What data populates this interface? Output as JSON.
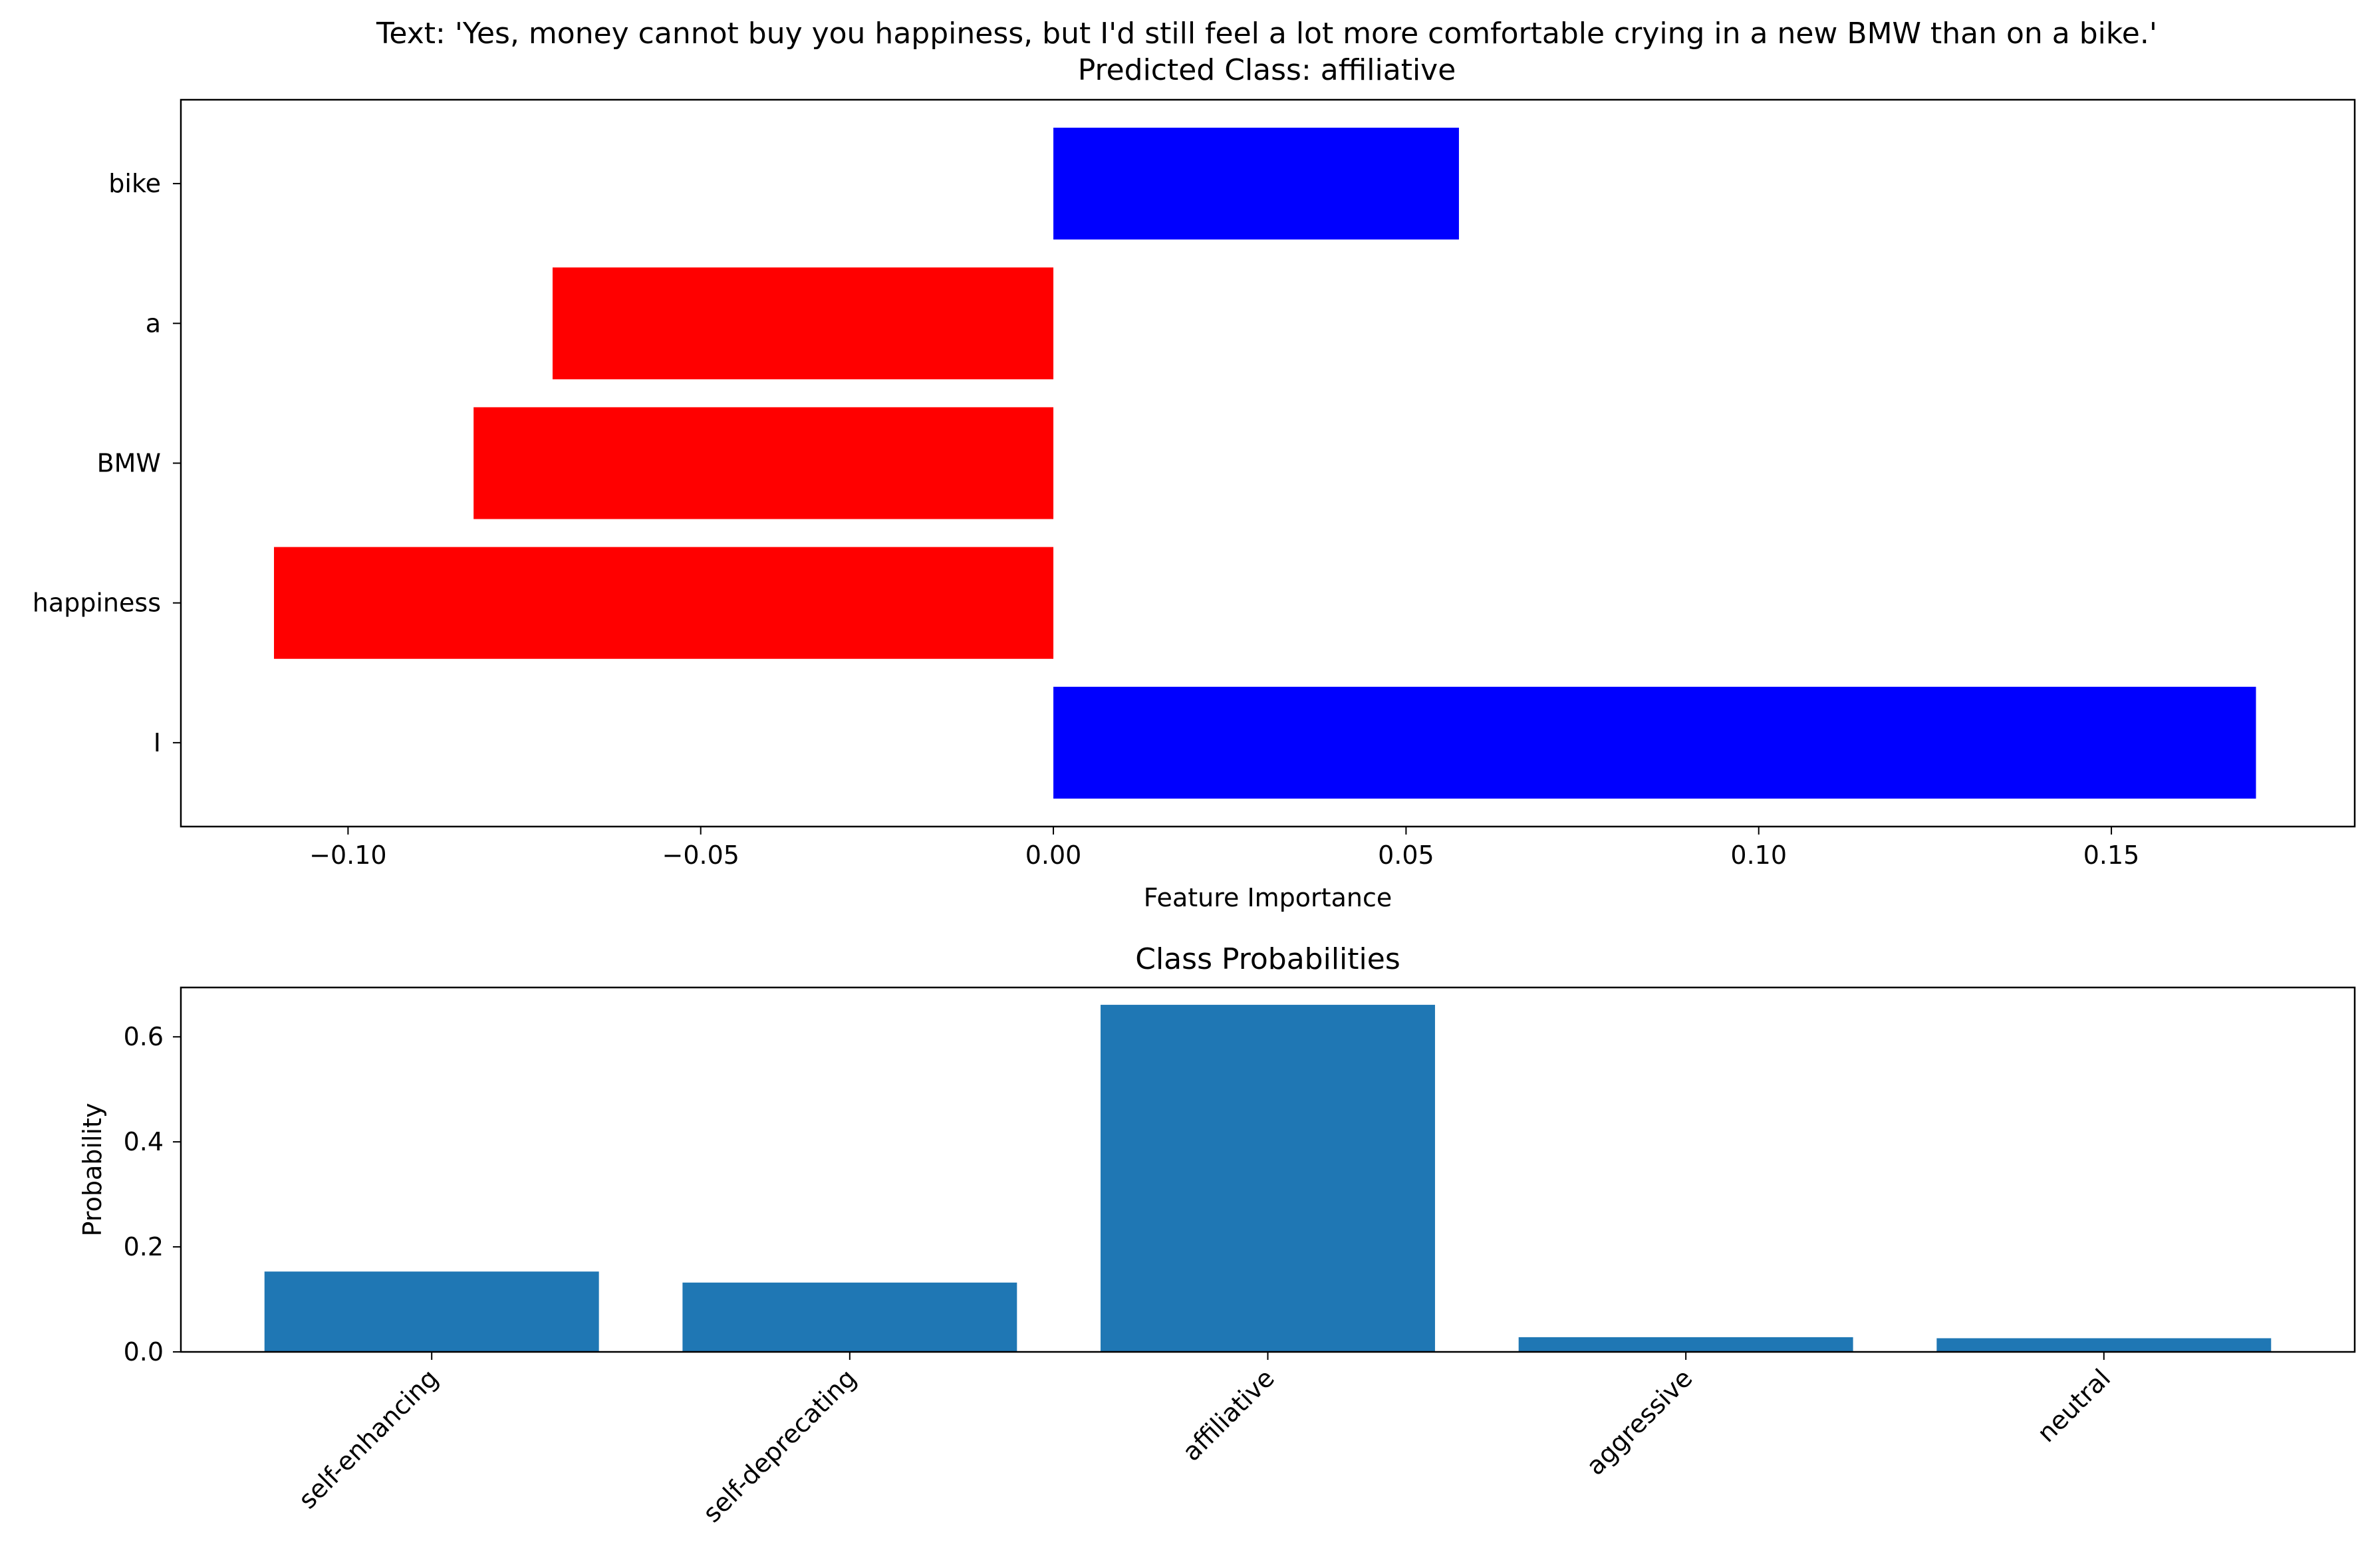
{
  "title_line1": "Text: 'Yes, money cannot buy you happiness, but I'd still feel a lot more comfortable crying in a new BMW than on a bike.'",
  "title_line2": "Predicted Class: affiliative",
  "chart_data": [
    {
      "type": "bar",
      "orientation": "horizontal",
      "title": "",
      "xlabel": "Feature Importance",
      "ylabel": "",
      "categories": [
        "I",
        "happiness",
        "BMW",
        "a",
        "bike"
      ],
      "values": [
        0.1705,
        -0.1105,
        -0.0822,
        -0.071,
        0.0575
      ],
      "colors": [
        "#0000ff",
        "#ff0000",
        "#ff0000",
        "#ff0000",
        "#0000ff"
      ],
      "positive_color": "#0000ff",
      "negative_color": "#ff0000",
      "xlim": [
        -0.1237,
        0.1845
      ],
      "xticks": [
        -0.1,
        -0.05,
        0.0,
        0.05,
        0.1,
        0.15
      ],
      "xtick_labels": [
        "−0.10",
        "−0.05",
        "0.00",
        "0.05",
        "0.10",
        "0.15"
      ],
      "grid": false
    },
    {
      "type": "bar",
      "title": "Class Probabilities",
      "xlabel": "",
      "ylabel": "Probability",
      "categories": [
        "self-enhancing",
        "self-deprecating",
        "affiliative",
        "aggressive",
        "neutral"
      ],
      "values": [
        0.153,
        0.132,
        0.661,
        0.028,
        0.026
      ],
      "color": "#1f77b4",
      "ylim": [
        0,
        0.694
      ],
      "yticks": [
        0.0,
        0.2,
        0.4,
        0.6
      ],
      "ytick_labels": [
        "0.0",
        "0.2",
        "0.4",
        "0.6"
      ],
      "xtick_rotation": 45,
      "grid": false
    }
  ]
}
